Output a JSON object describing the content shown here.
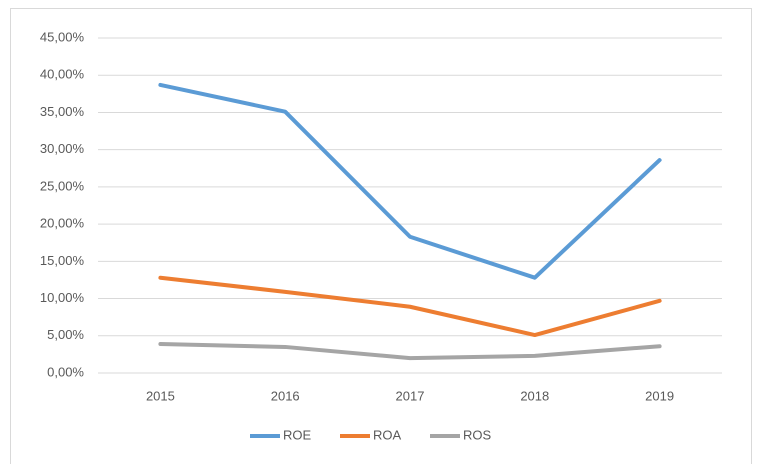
{
  "chart_data": {
    "type": "line",
    "categories": [
      "2015",
      "2016",
      "2017",
      "2018",
      "2019"
    ],
    "series": [
      {
        "name": "ROE",
        "color": "#5b9bd5",
        "values": [
          38.7,
          35.1,
          18.3,
          12.8,
          28.6
        ]
      },
      {
        "name": "ROA",
        "color": "#ed7d31",
        "values": [
          12.8,
          10.9,
          8.9,
          5.1,
          9.7
        ]
      },
      {
        "name": "ROS",
        "color": "#a5a5a5",
        "values": [
          3.9,
          3.5,
          2.0,
          2.3,
          3.6
        ]
      }
    ],
    "ylim": [
      0,
      45
    ],
    "yticks": [
      {
        "value": 0,
        "label": "0,00%"
      },
      {
        "value": 5,
        "label": "5,00%"
      },
      {
        "value": 10,
        "label": "10,00%"
      },
      {
        "value": 15,
        "label": "15,00%"
      },
      {
        "value": 20,
        "label": "20,00%"
      },
      {
        "value": 25,
        "label": "25,00%"
      },
      {
        "value": 30,
        "label": "30,00%"
      },
      {
        "value": 35,
        "label": "35,00%"
      },
      {
        "value": 40,
        "label": "40,00%"
      },
      {
        "value": 45,
        "label": "45,00%"
      }
    ],
    "grid": true,
    "legend": "bottom"
  }
}
